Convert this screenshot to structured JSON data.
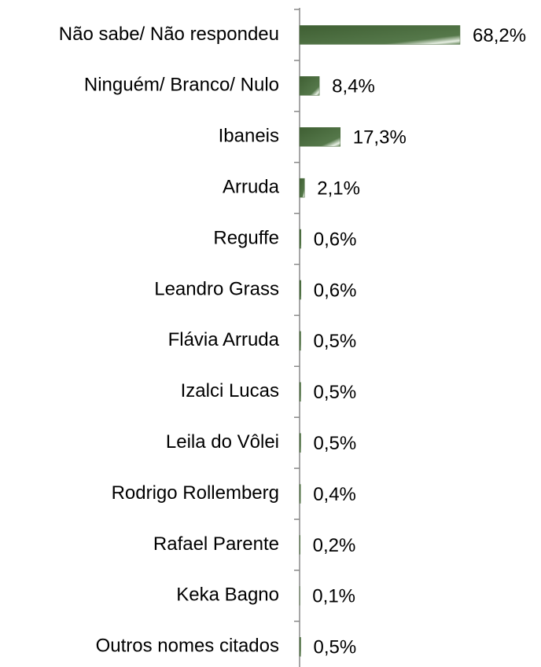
{
  "chart_data": {
    "type": "bar",
    "orientation": "horizontal",
    "color": "#4a6b3c",
    "categories": [
      "Não sabe/ Não respondeu",
      "Ninguém/ Branco/ Nulo",
      "Ibaneis",
      "Arruda",
      "Reguffe",
      "Leandro Grass",
      "Flávia Arruda",
      "Izalci Lucas",
      "Leila do Vôlei",
      "Rodrigo Rollemberg",
      "Rafael Parente",
      "Keka Bagno",
      "Outros nomes citados"
    ],
    "values": [
      68.2,
      8.4,
      17.3,
      2.1,
      0.6,
      0.6,
      0.5,
      0.5,
      0.5,
      0.4,
      0.2,
      0.1,
      0.5
    ],
    "value_labels": [
      "68,2%",
      "8,4%",
      "17,3%",
      "2,1%",
      "0,6%",
      "0,6%",
      "0,5%",
      "0,5%",
      "0,5%",
      "0,4%",
      "0,2%",
      "0,1%",
      "0,5%"
    ]
  }
}
